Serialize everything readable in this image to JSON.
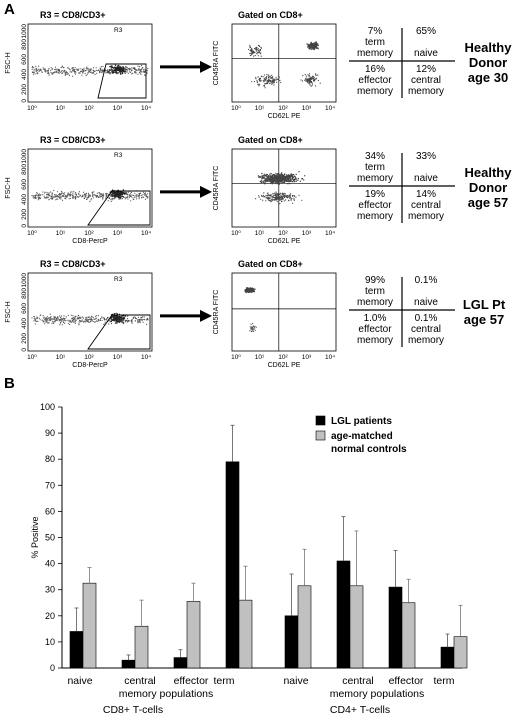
{
  "panel_a": {
    "label": "A",
    "rows": [
      {
        "gate_title": "R3 = CD8/CD3+",
        "gate_region": "R3",
        "gate_ylabel": "FSC-H",
        "gate_xlabel": "",
        "gate_yticks": [
          "0",
          "200",
          "400",
          "600",
          "800",
          "1000"
        ],
        "gated_title": "Gated on CD8+",
        "gated_ylabel": "CD45RA FITC",
        "gated_xlabel": "CD62L PE",
        "quadrants": {
          "tl_value": "7%",
          "tl_label": "term memory",
          "tr_value": "65%",
          "tr_label": "naive",
          "bl_value": "16%",
          "bl_label": "effector memory",
          "br_value": "12%",
          "br_label": "central memory"
        },
        "group": [
          "Healthy",
          "Donor",
          "age 30"
        ]
      },
      {
        "gate_title": "R3 = CD8/CD3+",
        "gate_region": "R3",
        "gate_ylabel": "FSC-H",
        "gate_xlabel": "CD8-PercP",
        "gate_yticks": [
          "0",
          "200",
          "400",
          "600",
          "800",
          "1000"
        ],
        "gated_title": "Gated on CD8+",
        "gated_ylabel": "CD45RA FITC",
        "gated_xlabel": "CD62L PE",
        "quadrants": {
          "tl_value": "34%",
          "tl_label": "term memory",
          "tr_value": "33%",
          "tr_label": "naive",
          "bl_value": "19%",
          "bl_label": "effector memory",
          "br_value": "14%",
          "br_label": "central memory"
        },
        "group": [
          "Healthy",
          "Donor",
          "age 57"
        ]
      },
      {
        "gate_title": "R3 = CD8/CD3+",
        "gate_region": "R3",
        "gate_ylabel": "FSC-H",
        "gate_xlabel": "CD8-PercP",
        "gate_yticks": [
          "0",
          "200",
          "400",
          "600",
          "800",
          "1000"
        ],
        "gated_title": "Gated on CD8+",
        "gated_ylabel": "CD45RA FITC",
        "gated_xlabel": "CD62L PE",
        "quadrants": {
          "tl_value": "99%",
          "tl_label": "term memory",
          "tr_value": "0.1%",
          "tr_label": "naive",
          "bl_value": "1.0%",
          "bl_label": "effector memory",
          "br_value": "0.1%",
          "br_label": "central memory"
        },
        "group": [
          "LGL Pt",
          "age 57"
        ]
      }
    ],
    "log_ticks": [
      "10⁰",
      "10¹",
      "10²",
      "10³",
      "10⁴"
    ]
  },
  "chart_data": {
    "type": "bar",
    "panel_label": "B",
    "ylabel": "% Positive",
    "ylim": [
      0,
      100
    ],
    "yticks": [
      0,
      10,
      20,
      30,
      40,
      50,
      60,
      70,
      80,
      90,
      100
    ],
    "categories": [
      "naive",
      "central memory",
      "effector memory",
      "term",
      "naive",
      "central memory",
      "effector memory",
      "term"
    ],
    "cat_lines": [
      [
        "naive",
        "",
        ""
      ],
      [
        "central",
        "memory",
        ""
      ],
      [
        "effector",
        "populations",
        ""
      ],
      [
        "term",
        "",
        ""
      ]
    ],
    "category_labels_row1": [
      "naive",
      "central",
      "effector",
      "term"
    ],
    "category_labels_row2": "memory populations",
    "groups": [
      "CD8+ T-cells",
      "CD4+ T-cells"
    ],
    "series": [
      {
        "name": "LGL patients",
        "color": "#000000",
        "values": [
          14,
          3,
          4,
          79,
          20,
          41,
          31,
          8
        ],
        "errors": [
          9,
          2,
          3,
          14,
          16,
          17,
          14,
          5
        ]
      },
      {
        "name": "age-matched normal controls",
        "color": "#c0c0c0",
        "values": [
          32.5,
          16,
          25.5,
          26,
          31.5,
          31.5,
          25,
          12
        ],
        "errors": [
          6,
          10,
          7,
          13,
          14,
          21,
          9,
          12
        ]
      }
    ],
    "legend": {
      "entries": [
        "LGL patients",
        "age-matched",
        "normal controls"
      ],
      "position": "top-right"
    },
    "grid": false
  }
}
